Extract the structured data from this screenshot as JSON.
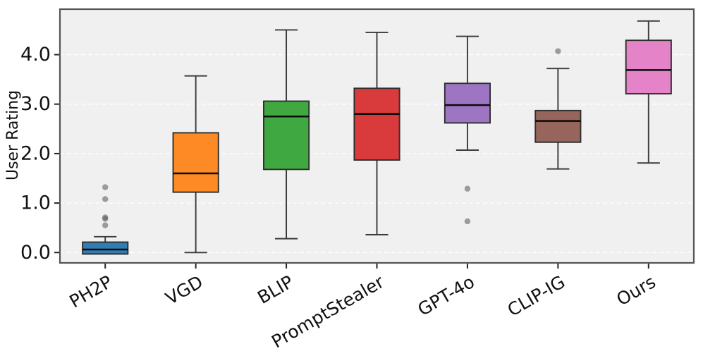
{
  "chart_data": {
    "type": "box",
    "title": "",
    "xlabel": "",
    "ylabel": "User Rating",
    "categories": [
      "PH2P",
      "VGD",
      "BLIP",
      "PromptStealer",
      "GPT-4o",
      "CLIP-IG",
      "Ours"
    ],
    "yticks": [
      0.0,
      1.0,
      2.0,
      3.0,
      4.0
    ],
    "ytick_labels": [
      "0.0",
      "1.0",
      "2.0",
      "3.0",
      "4.0"
    ],
    "ylim": [
      -0.21,
      4.92
    ],
    "grid": "horizontal-dashed",
    "legend": "none",
    "x_label_rotation_deg": 30,
    "series": [
      {
        "name": "PH2P",
        "color": "#317cb2",
        "whisker_low": -0.03,
        "q1": -0.03,
        "median": 0.06,
        "q3": 0.21,
        "whisker_high": 0.32,
        "outliers": [
          0.55,
          0.68,
          0.71,
          1.08,
          1.32
        ]
      },
      {
        "name": "VGD",
        "color": "#fd8a24",
        "whisker_low": 0.0,
        "q1": 1.22,
        "median": 1.6,
        "q3": 2.42,
        "whisker_high": 3.57,
        "outliers": []
      },
      {
        "name": "BLIP",
        "color": "#40a840",
        "whisker_low": 0.28,
        "q1": 1.68,
        "median": 2.75,
        "q3": 3.06,
        "whisker_high": 4.5,
        "outliers": []
      },
      {
        "name": "PromptStealer",
        "color": "#d93b3c",
        "whisker_low": 0.36,
        "q1": 1.87,
        "median": 2.8,
        "q3": 3.32,
        "whisker_high": 4.45,
        "outliers": []
      },
      {
        "name": "GPT-4o",
        "color": "#9d75c2",
        "whisker_low": 2.07,
        "q1": 2.62,
        "median": 2.98,
        "q3": 3.42,
        "whisker_high": 4.37,
        "outliers": [
          0.63,
          1.29
        ]
      },
      {
        "name": "CLIP-IG",
        "color": "#96655c",
        "whisker_low": 1.69,
        "q1": 2.23,
        "median": 2.66,
        "q3": 2.87,
        "whisker_high": 3.72,
        "outliers": [
          4.07
        ]
      },
      {
        "name": "Ours",
        "color": "#e483c7",
        "whisker_low": 1.81,
        "q1": 3.21,
        "median": 3.69,
        "q3": 4.29,
        "whisker_high": 4.68,
        "outliers": []
      }
    ]
  },
  "style": {
    "plot_background": "#f0f0f0",
    "grid_color": "#ffffff",
    "spine_color": "#555555",
    "tick_mark_color": "#262626",
    "text_color": "#111111",
    "box_edge_color": "#2e2e2e",
    "whisker_color": "#3a3a3a",
    "median_color": "#0a0a0a",
    "outlier_color": "#555555"
  }
}
